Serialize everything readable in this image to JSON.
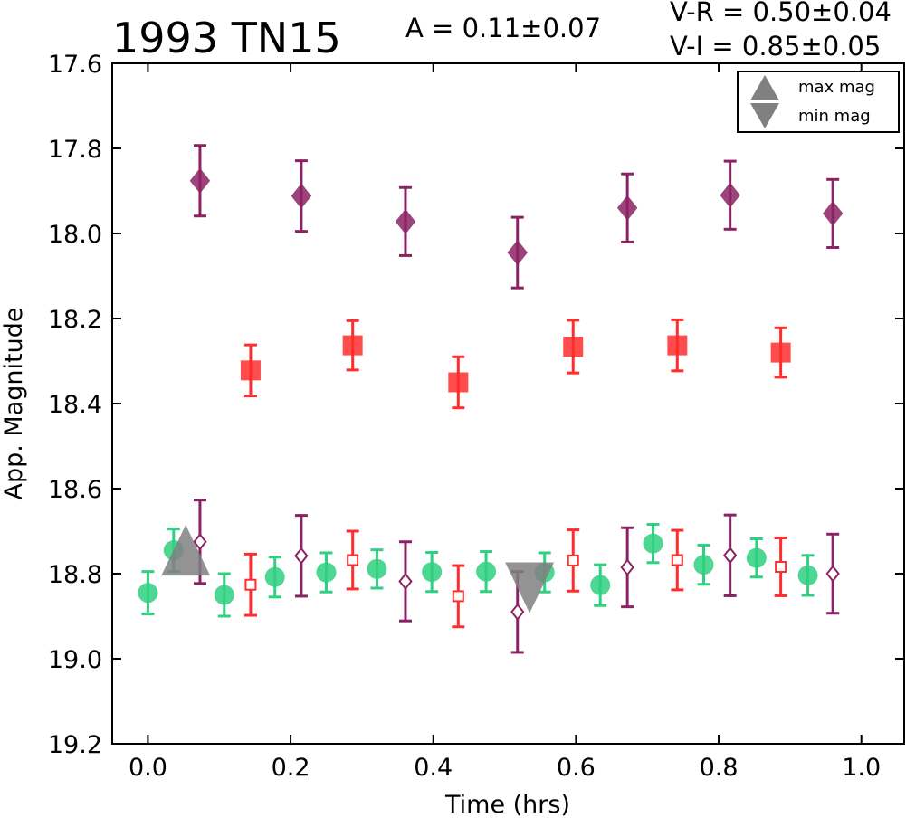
{
  "chart_data": {
    "type": "scatter",
    "title": "1993 TN15",
    "annotations": {
      "amplitude": "A  = 0.11±0.07",
      "v_r": "V-R = 0.50±0.04",
      "v_i": "V-I  = 0.85±0.05"
    },
    "xlabel": "Time (hrs)",
    "ylabel": "App. Magnitude",
    "xlim": [
      -0.05,
      1.06
    ],
    "ylim": [
      17.6,
      19.2
    ],
    "y_inverted": true,
    "xticks": [
      "0.0",
      "0.2",
      "0.4",
      "0.6",
      "0.8",
      "1.0"
    ],
    "yticks": [
      "17.6",
      "17.8",
      "18.0",
      "18.2",
      "18.4",
      "18.6",
      "18.8",
      "19.0",
      "19.2"
    ],
    "grid": false,
    "legend_position": "top-right",
    "legend": [
      {
        "label": "max mag",
        "marker": "triangle-up",
        "color": "#808080"
      },
      {
        "label": "min mag",
        "marker": "triangle-down",
        "color": "#808080"
      }
    ],
    "series": [
      {
        "marker": "diamond",
        "fill": true,
        "color": "#8b2263",
        "x": [
          0.073,
          0.215,
          0.361,
          0.518,
          0.672,
          0.816,
          0.96
        ],
        "y": [
          17.876,
          17.912,
          17.972,
          18.045,
          17.94,
          17.91,
          17.953
        ],
        "err": [
          0.083,
          0.083,
          0.08,
          0.083,
          0.08,
          0.08,
          0.08
        ]
      },
      {
        "marker": "square",
        "fill": true,
        "color": "#ff2d2d",
        "x": [
          0.144,
          0.287,
          0.435,
          0.596,
          0.742,
          0.887
        ],
        "y": [
          18.322,
          18.263,
          18.35,
          18.266,
          18.263,
          18.28
        ],
        "err": [
          0.06,
          0.058,
          0.06,
          0.062,
          0.06,
          0.058
        ]
      },
      {
        "marker": "circle",
        "fill": true,
        "color": "#2fd07f",
        "x": [
          0.0,
          0.036,
          0.107,
          0.178,
          0.25,
          0.321,
          0.398,
          0.474,
          0.556,
          0.634,
          0.708,
          0.779,
          0.853,
          0.925
        ],
        "y": [
          18.845,
          18.745,
          18.85,
          18.808,
          18.797,
          18.789,
          18.796,
          18.795,
          18.797,
          18.827,
          18.729,
          18.779,
          18.763,
          18.804
        ],
        "err": [
          0.05,
          0.05,
          0.05,
          0.047,
          0.046,
          0.045,
          0.046,
          0.047,
          0.046,
          0.048,
          0.045,
          0.046,
          0.045,
          0.047
        ]
      },
      {
        "marker": "square",
        "fill": false,
        "color": "#ff2d2d",
        "x": [
          0.144,
          0.287,
          0.435,
          0.596,
          0.742,
          0.887
        ],
        "y": [
          18.826,
          18.768,
          18.853,
          18.769,
          18.768,
          18.784
        ],
        "err": [
          0.072,
          0.068,
          0.072,
          0.072,
          0.07,
          0.068
        ]
      },
      {
        "marker": "diamond",
        "fill": false,
        "color": "#8b2263",
        "x": [
          0.073,
          0.215,
          0.361,
          0.518,
          0.672,
          0.816,
          0.96
        ],
        "y": [
          18.725,
          18.758,
          18.818,
          18.89,
          18.785,
          18.757,
          18.8
        ],
        "err": [
          0.098,
          0.095,
          0.093,
          0.095,
          0.093,
          0.095,
          0.093
        ]
      }
    ],
    "extrema": [
      {
        "kind": "max mag",
        "marker": "triangle-up",
        "x": 0.053,
        "y": 18.745
      },
      {
        "kind": "min mag",
        "marker": "triangle-down",
        "x": 0.535,
        "y": 18.833
      }
    ]
  }
}
